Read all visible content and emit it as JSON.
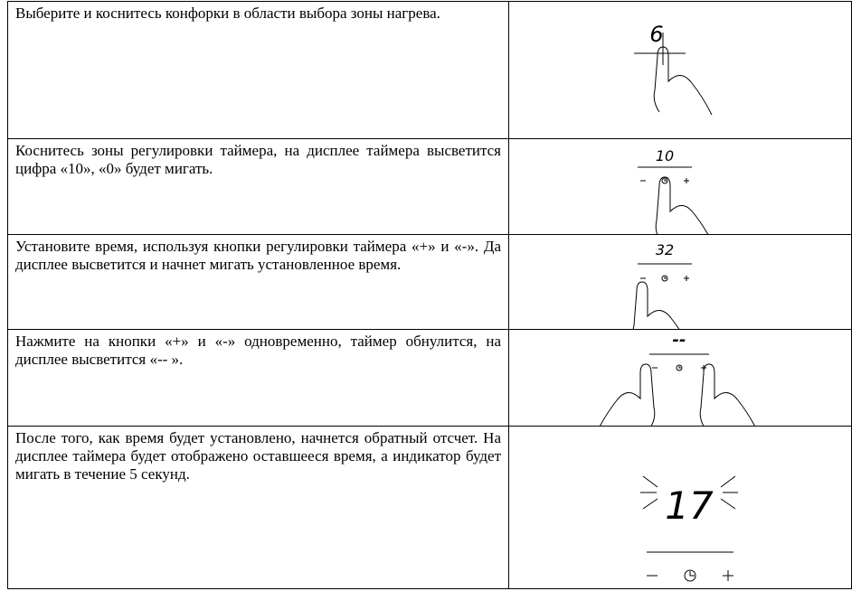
{
  "table": {
    "rows": [
      {
        "text": "Выберите и коснитесь конфорки в области выбора зоны нагрева.",
        "display": "6"
      },
      {
        "text": "Коснитесь зоны  регулировки таймера, на дисплее таймера высветится цифра «10»,  «0» будет мигать.",
        "display": "10"
      },
      {
        "text": "Установите время, используя кнопки регулировки таймера «+» и «-». Да дисплее высветится и начнет мигать установленное время.",
        "display": "32"
      },
      {
        "text": "Нажмите на кнопки «+» и «-» одновременно, таймер обнулится, на дисплее высветится «-- ».",
        "display": "--"
      },
      {
        "text": "После того, как время будет установлено, начнется обратный отсчет. На дисплее таймера будет отображено оставшееся время, а индикатор будет мигать в течение 5 секунд.",
        "display": "17"
      }
    ]
  }
}
